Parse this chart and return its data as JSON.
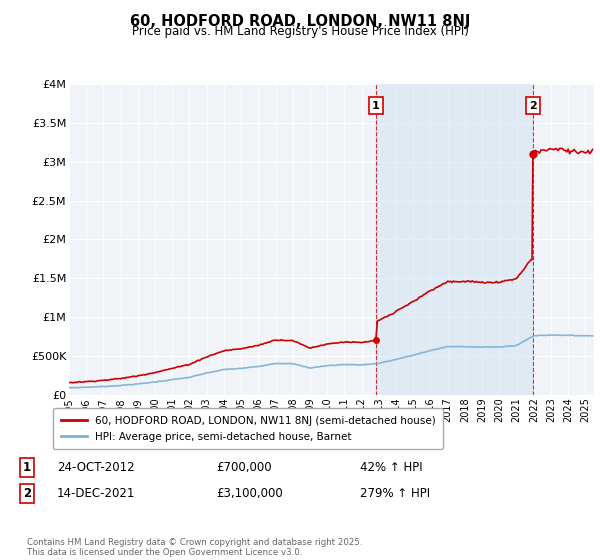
{
  "title": "60, HODFORD ROAD, LONDON, NW11 8NJ",
  "subtitle": "Price paid vs. HM Land Registry's House Price Index (HPI)",
  "ylim": [
    0,
    4000000
  ],
  "yticks": [
    0,
    500000,
    1000000,
    1500000,
    2000000,
    2500000,
    3000000,
    3500000,
    4000000
  ],
  "ytick_labels": [
    "£0",
    "£500K",
    "£1M",
    "£1.5M",
    "£2M",
    "£2.5M",
    "£3M",
    "£3.5M",
    "£4M"
  ],
  "background_color": "#ffffff",
  "plot_bg_color": "#f0f4f8",
  "grid_color": "#ffffff",
  "hpi_line_color": "#7ab0d4",
  "price_line_color": "#cc0000",
  "shade_color": "#ccdff0",
  "transaction1_date": 2012.82,
  "transaction1_price": 700000,
  "transaction2_date": 2021.95,
  "transaction2_price": 3100000,
  "legend_label1": "60, HODFORD ROAD, LONDON, NW11 8NJ (semi-detached house)",
  "legend_label2": "HPI: Average price, semi-detached house, Barnet",
  "annotation1_date": "24-OCT-2012",
  "annotation1_price": "£700,000",
  "annotation1_hpi": "42% ↑ HPI",
  "annotation2_date": "14-DEC-2021",
  "annotation2_price": "£3,100,000",
  "annotation2_hpi": "279% ↑ HPI",
  "footnote": "Contains HM Land Registry data © Crown copyright and database right 2025.\nThis data is licensed under the Open Government Licence v3.0.",
  "xlim_start": 1995,
  "xlim_end": 2025.5,
  "xticks": [
    1995,
    1996,
    1997,
    1998,
    1999,
    2000,
    2001,
    2002,
    2003,
    2004,
    2005,
    2006,
    2007,
    2008,
    2009,
    2010,
    2011,
    2012,
    2013,
    2014,
    2015,
    2016,
    2017,
    2018,
    2019,
    2020,
    2021,
    2022,
    2023,
    2024,
    2025
  ]
}
